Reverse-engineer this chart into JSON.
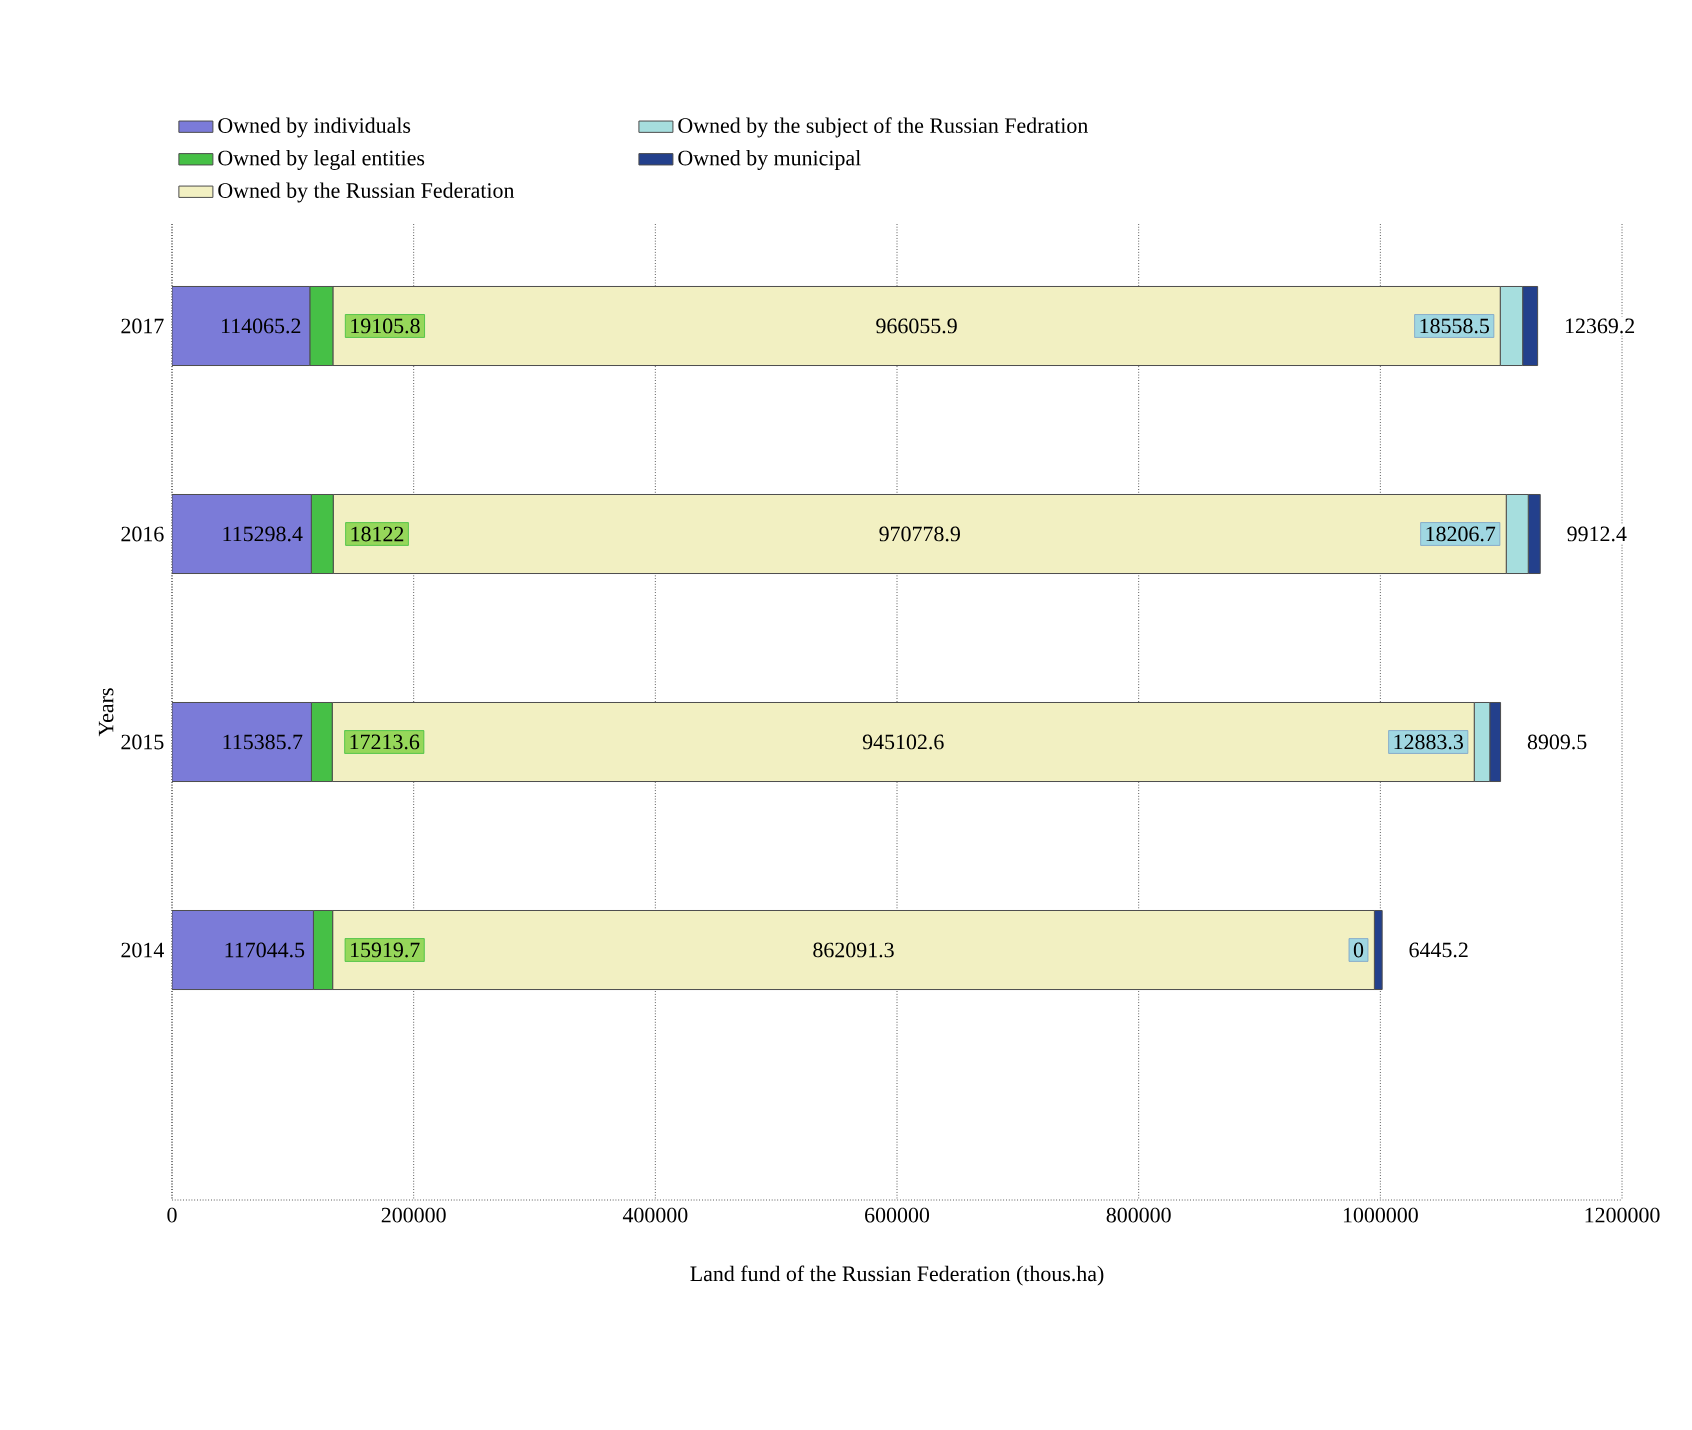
{
  "chart_data": {
    "type": "bar",
    "orientation": "horizontal",
    "stacked": true,
    "data_labels": true,
    "grid": "x",
    "legend": "top left",
    "xlabel": "Land fund of the Russian Federation (thous.ha)",
    "ylabel": "Years",
    "categories": [
      "2017",
      "2016",
      "2015",
      "2014"
    ],
    "xlim": [
      0,
      1200000
    ],
    "xticks": [
      0,
      200000,
      400000,
      600000,
      800000,
      1000000,
      1200000
    ],
    "series": [
      {
        "name": "Owned by individuals",
        "color": "#7b7bd8",
        "values": [
          114065.2,
          115298.4,
          115385.7,
          117044.5
        ]
      },
      {
        "name": "Owned by legal entities",
        "color": "#46c046",
        "values": [
          19105.8,
          18122,
          17213.6,
          15919.7
        ]
      },
      {
        "name": "Owned by the Russian Federation",
        "color": "#f2f0c2",
        "values": [
          966055.9,
          970778.9,
          945102.6,
          862091.3
        ]
      },
      {
        "name": "Owned by the subject of the Russian Fedration",
        "color": "#a6dede",
        "values": [
          18558.5,
          18206.7,
          12883.3,
          0
        ]
      },
      {
        "name": "Owned by municipal",
        "color": "#23408c",
        "values": [
          12369.2,
          9912.4,
          8909.5,
          6445.2
        ]
      }
    ]
  }
}
